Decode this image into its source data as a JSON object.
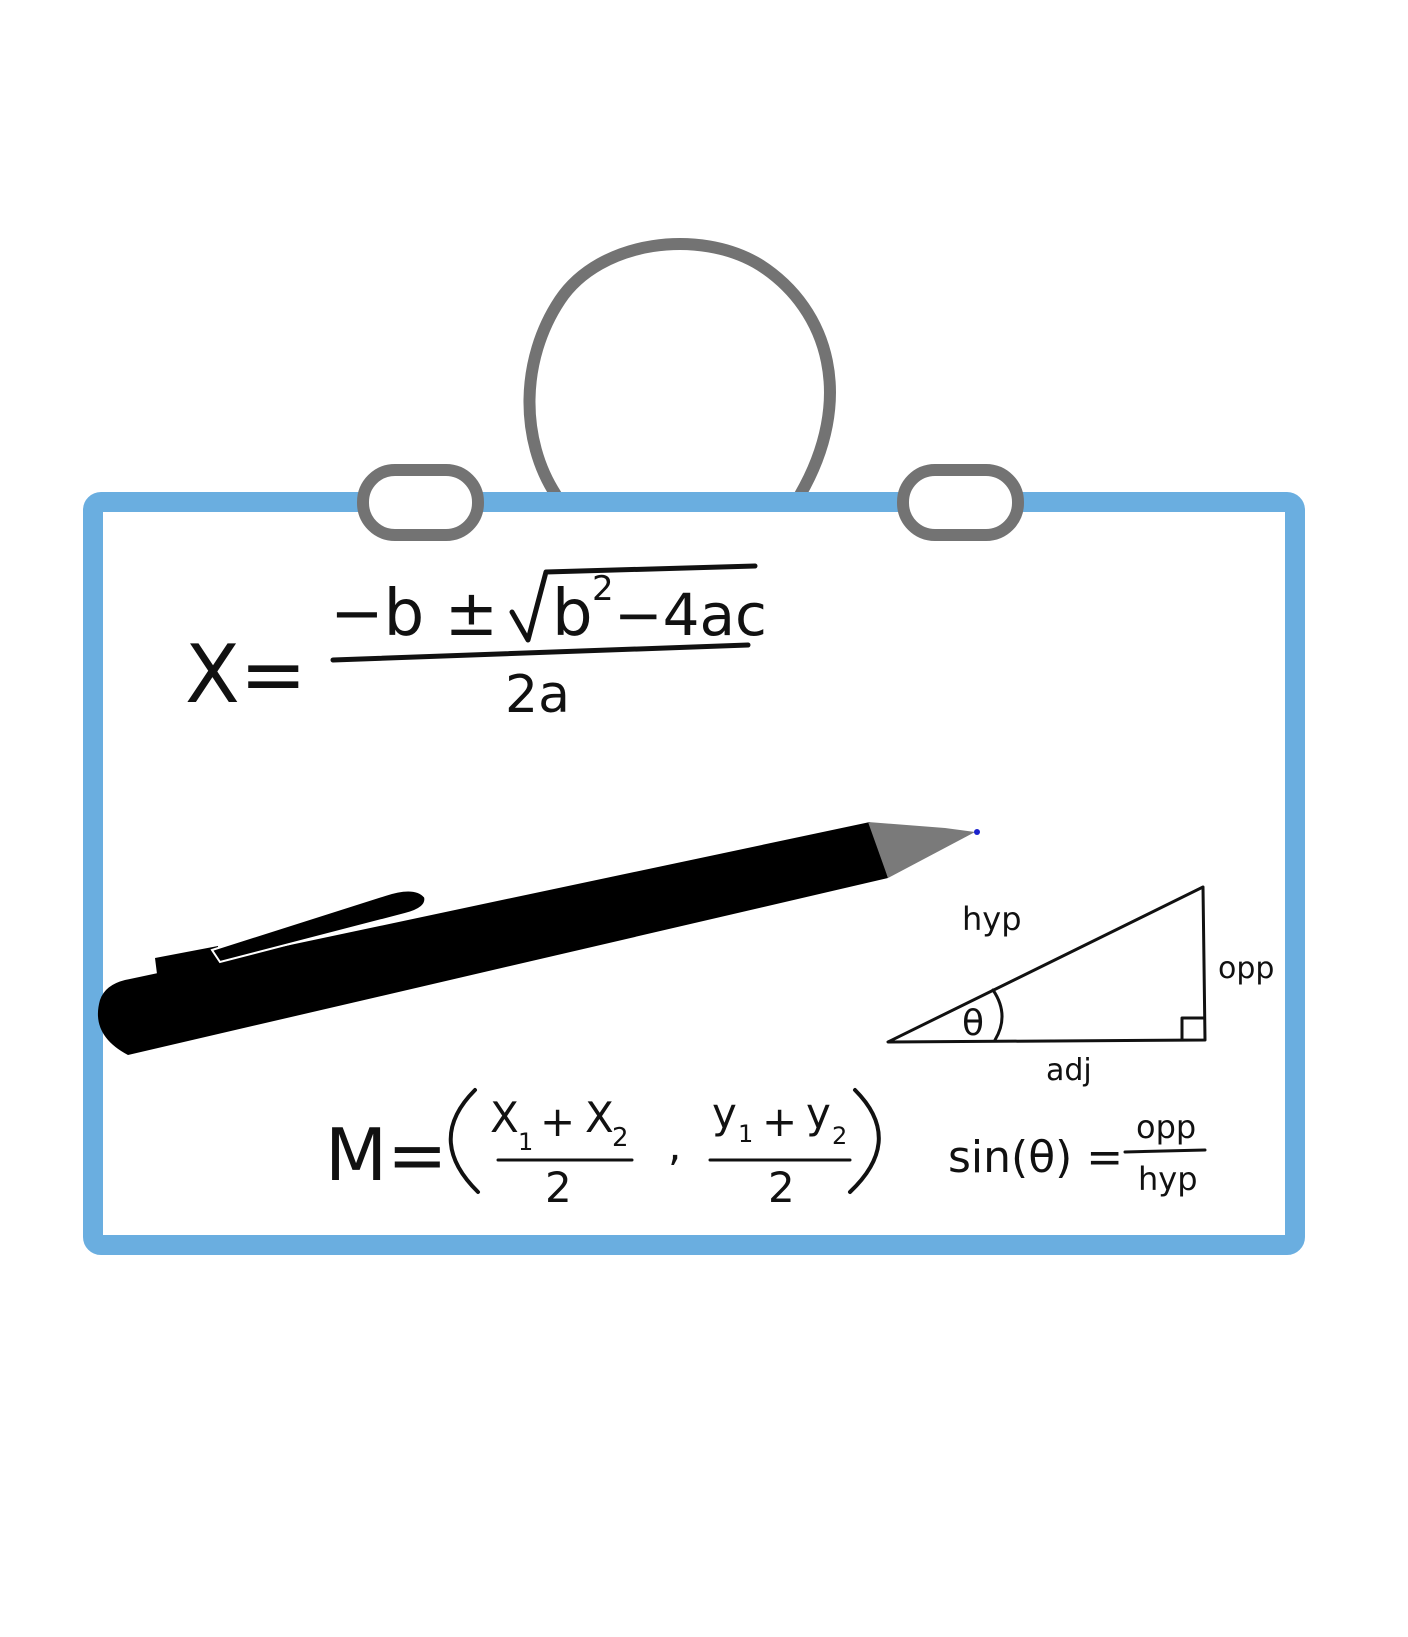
{
  "colors": {
    "board_frame": "#6aaee0",
    "board_bg": "#ffffff",
    "hanger": "#737373",
    "ink": "#111111",
    "pen_body": "#000000",
    "pen_tip": "#7a7a7a",
    "pen_point": "#1a22cc"
  },
  "icons": {
    "board": "whiteboard-icon",
    "hanger": "hanger-ring-icon",
    "pen": "pen-icon",
    "triangle": "right-triangle-icon"
  },
  "quadratic": {
    "lhs": "X=",
    "numerator_a": "−b ±",
    "numerator_b": "b",
    "numerator_exp": "2",
    "numerator_c": "−4ac",
    "denominator": "2a"
  },
  "triangle": {
    "hyp": "hyp",
    "opp": "opp",
    "adj": "adj",
    "angle": "θ"
  },
  "midpoint": {
    "lhs": "M=",
    "x1": "X",
    "x1_sub": "1",
    "plus_x": "+",
    "x2": "X",
    "x2_sub": "2",
    "den_x": "2",
    "comma": ",",
    "y1": "y",
    "y1_sub": "1",
    "plus_y": "+",
    "y2": "y",
    "y2_sub": "2",
    "den_y": "2"
  },
  "sine": {
    "lhs": "sin(θ) =",
    "numerator": "opp",
    "denominator": "hyp"
  }
}
